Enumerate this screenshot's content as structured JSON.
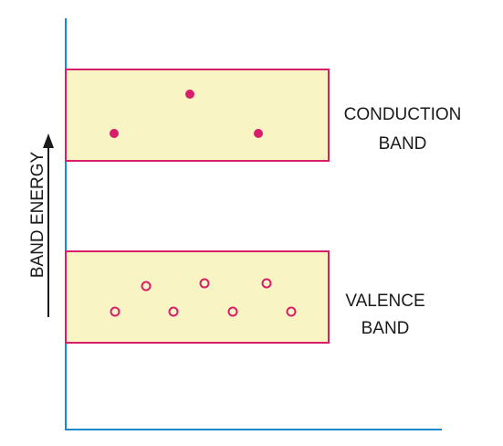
{
  "axis": {
    "y_label": "BAND ENERGY"
  },
  "bands": {
    "conduction": {
      "label_line1": "CONDUCTION",
      "label_line2": "BAND",
      "carrier": "electron",
      "carrier_count": 3
    },
    "valence": {
      "label_line1": "VALENCE",
      "label_line2": "BAND",
      "carrier": "hole",
      "carrier_count": 7
    }
  },
  "colors": {
    "axis": "#1a8ad0",
    "band_fill": "#f8f4c4",
    "band_border": "#d81e6a",
    "carrier": "#d81e6a",
    "text": "#1a1a1a"
  }
}
